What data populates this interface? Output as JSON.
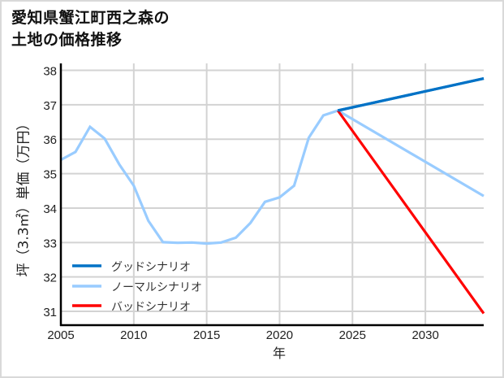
{
  "title": {
    "line1": "愛知県蟹江町西之森の",
    "line2": "土地の価格推移"
  },
  "chart_data": {
    "type": "line",
    "title": "愛知県蟹江町西之森の土地の価格推移",
    "xlabel": "年",
    "ylabel": "坪（3.3㎡）単価（万円）",
    "xlim": [
      2005,
      2034
    ],
    "ylim": [
      30.6,
      38.2
    ],
    "xticks": [
      2005,
      2010,
      2015,
      2020,
      2025,
      2030
    ],
    "yticks": [
      31,
      32,
      33,
      34,
      35,
      36,
      37,
      38
    ],
    "grid": true,
    "legend_position": "lower left",
    "series": [
      {
        "name": "グッドシナリオ",
        "color": "#0072c6",
        "x": [
          2024,
          2034
        ],
        "values": [
          36.83,
          37.76
        ]
      },
      {
        "name": "ノーマルシナリオ",
        "color": "#99ccff",
        "x": [
          2005,
          2006,
          2007,
          2008,
          2009,
          2010,
          2011,
          2012,
          2013,
          2014,
          2015,
          2016,
          2017,
          2018,
          2019,
          2020,
          2021,
          2022,
          2023,
          2024,
          2034
        ],
        "values": [
          35.4,
          35.63,
          36.36,
          36.02,
          35.27,
          34.65,
          33.63,
          33.01,
          32.99,
          33.0,
          32.97,
          33.0,
          33.14,
          33.57,
          34.18,
          34.31,
          34.65,
          36.04,
          36.69,
          36.83,
          34.35
        ]
      },
      {
        "name": "バッドシナリオ",
        "color": "#ff0000",
        "x": [
          2024,
          2034
        ],
        "values": [
          36.83,
          30.94
        ]
      }
    ]
  },
  "axis": {
    "x_ticks": [
      "2005",
      "2010",
      "2015",
      "2020",
      "2025",
      "2030"
    ],
    "y_ticks": [
      "38",
      "37",
      "36",
      "35",
      "34",
      "33",
      "32",
      "31"
    ]
  },
  "legend": [
    {
      "label": "グッドシナリオ",
      "color": "#0072c6"
    },
    {
      "label": "ノーマルシナリオ",
      "color": "#99ccff"
    },
    {
      "label": "バッドシナリオ",
      "color": "#ff0000"
    }
  ]
}
